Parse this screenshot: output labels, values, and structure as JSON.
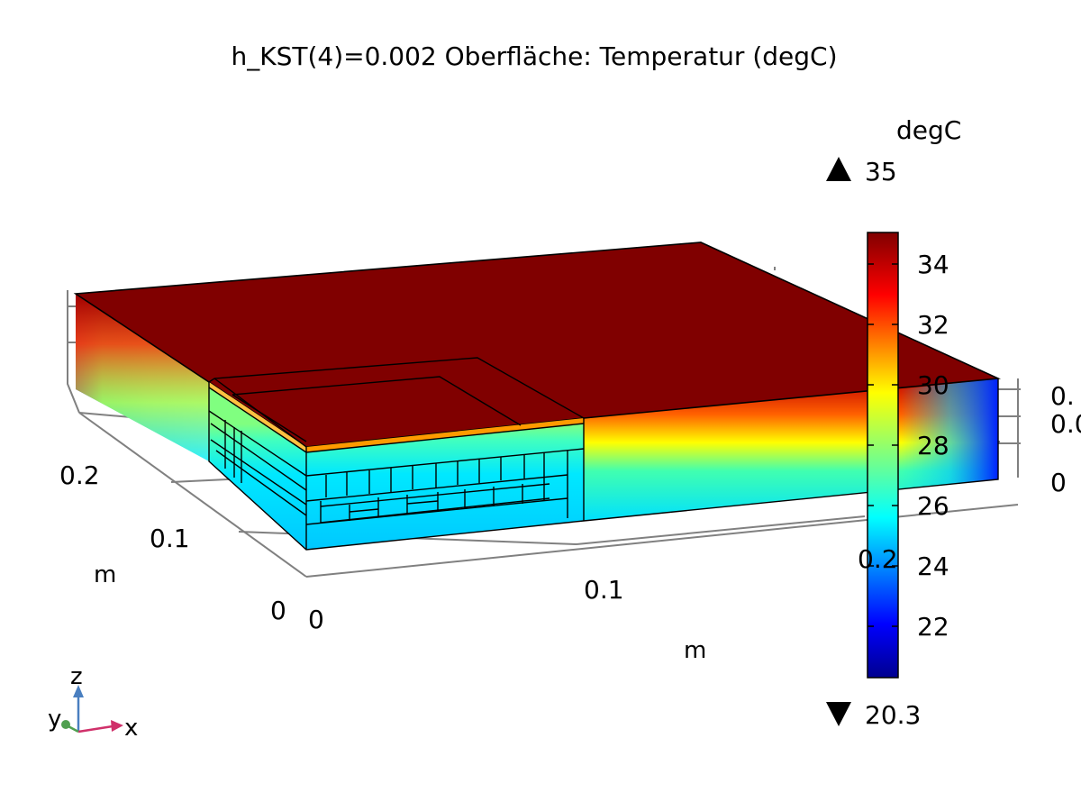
{
  "title": "h_KST(4)=0.002   Oberfläche: Temperatur (degC)",
  "colorbar": {
    "unit": "degC",
    "max_label": "35",
    "min_label": "20.3",
    "max": 35,
    "min": 20.3,
    "ticks": [
      "34",
      "32",
      "30",
      "28",
      "26",
      "24",
      "22"
    ],
    "colormap": "rainbow"
  },
  "axes": {
    "x": {
      "label": "m",
      "ticks": [
        "0",
        "0.1",
        "0.2"
      ]
    },
    "y": {
      "label": "m",
      "ticks": [
        "0",
        "0.1",
        "0.2"
      ]
    },
    "z": {
      "ticks": [
        "0",
        "0.0",
        "0."
      ]
    }
  },
  "triad": {
    "x": "x",
    "y": "y",
    "z": "z"
  },
  "colors": {
    "top_surface": "#800000",
    "edge": "#000000",
    "grid": "#808080"
  }
}
